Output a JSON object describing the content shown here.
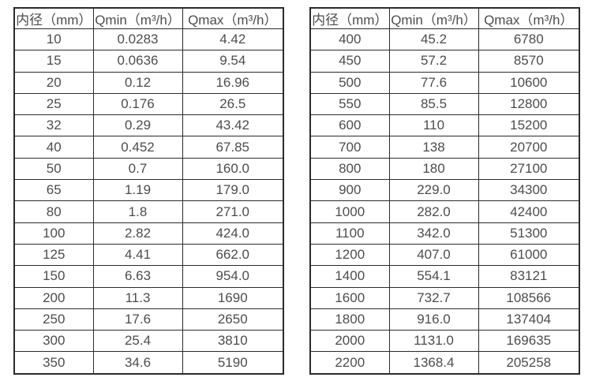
{
  "page": {
    "background": "#ffffff",
    "text_color": "#4d4d4d",
    "border_color": "#2b2b2b",
    "description": "Flow meter diameter vs minimum and maximum flow rate specification tables"
  },
  "tables": [
    {
      "name": "small-diameters",
      "headers": [
        "内径（mm）",
        "Qmin（m³/h）",
        "Qmax（m³/h）"
      ],
      "rows": [
        [
          "10",
          "0.0283",
          "4.42"
        ],
        [
          "15",
          "0.0636",
          "9.54"
        ],
        [
          "20",
          "0.12",
          "16.96"
        ],
        [
          "25",
          "0.176",
          "26.5"
        ],
        [
          "32",
          "0.29",
          "43.42"
        ],
        [
          "40",
          "0.452",
          "67.85"
        ],
        [
          "50",
          "0.7",
          "160.0"
        ],
        [
          "65",
          "1.19",
          "179.0"
        ],
        [
          "80",
          "1.8",
          "271.0"
        ],
        [
          "100",
          "2.82",
          "424.0"
        ],
        [
          "125",
          "4.41",
          "662.0"
        ],
        [
          "150",
          "6.63",
          "954.0"
        ],
        [
          "200",
          "11.3",
          "1690"
        ],
        [
          "250",
          "17.6",
          "2650"
        ],
        [
          "300",
          "25.4",
          "3810"
        ],
        [
          "350",
          "34.6",
          "5190"
        ]
      ]
    },
    {
      "name": "large-diameters",
      "headers": [
        "内径（mm）",
        "Qmin（m³/h）",
        "Qmax（m³/h）"
      ],
      "rows": [
        [
          "400",
          "45.2",
          "6780"
        ],
        [
          "450",
          "57.2",
          "8570"
        ],
        [
          "500",
          "77.6",
          "10600"
        ],
        [
          "550",
          "85.5",
          "12800"
        ],
        [
          "600",
          "110",
          "15200"
        ],
        [
          "700",
          "138",
          "20700"
        ],
        [
          "800",
          "180",
          "27100"
        ],
        [
          "900",
          "229.0",
          "34300"
        ],
        [
          "1000",
          "282.0",
          "42400"
        ],
        [
          "1100",
          "342.0",
          "51300"
        ],
        [
          "1200",
          "407.0",
          "61000"
        ],
        [
          "1400",
          "554.1",
          "83121"
        ],
        [
          "1600",
          "732.7",
          "108566"
        ],
        [
          "1800",
          "916.0",
          "137404"
        ],
        [
          "2000",
          "1131.0",
          "169635"
        ],
        [
          "2200",
          "1368.4",
          "205258"
        ]
      ]
    }
  ]
}
